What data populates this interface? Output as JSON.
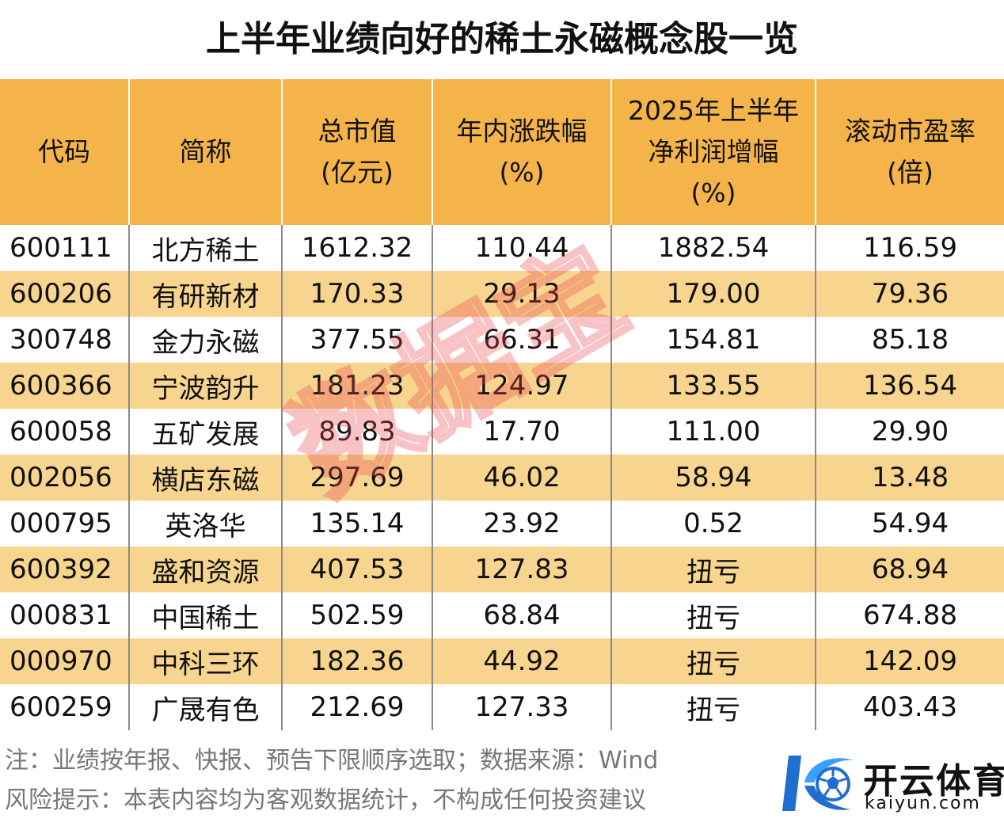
{
  "title": "上半年业绩向好的稀土永磁概念股一览",
  "table": {
    "headers": [
      [
        "代码"
      ],
      [
        "简称"
      ],
      [
        "总市值",
        "(亿元)"
      ],
      [
        "年内涨跌幅",
        "(%)"
      ],
      [
        "2025年上半年",
        "净利润增幅",
        "(%)"
      ],
      [
        "滚动市盈率",
        "(倍)"
      ]
    ],
    "rows": [
      [
        "600111",
        "北方稀土",
        "1612.32",
        "110.44",
        "1882.54",
        "116.59"
      ],
      [
        "600206",
        "有研新材",
        "170.33",
        "29.13",
        "179.00",
        "79.36"
      ],
      [
        "300748",
        "金力永磁",
        "377.55",
        "66.31",
        "154.81",
        "85.18"
      ],
      [
        "600366",
        "宁波韵升",
        "181.23",
        "124.97",
        "133.55",
        "136.54"
      ],
      [
        "600058",
        "五矿发展",
        "89.83",
        "17.70",
        "111.00",
        "29.90"
      ],
      [
        "002056",
        "横店东磁",
        "297.69",
        "46.02",
        "58.94",
        "13.48"
      ],
      [
        "000795",
        "英洛华",
        "135.14",
        "23.92",
        "0.52",
        "54.94"
      ],
      [
        "600392",
        "盛和资源",
        "407.53",
        "127.83",
        "扭亏",
        "68.94"
      ],
      [
        "000831",
        "中国稀土",
        "502.59",
        "68.84",
        "扭亏",
        "674.88"
      ],
      [
        "000970",
        "中科三环",
        "182.36",
        "44.92",
        "扭亏",
        "142.09"
      ],
      [
        "600259",
        "广晟有色",
        "212.69",
        "127.33",
        "扭亏",
        "403.43"
      ]
    ]
  },
  "watermark": "数据宝",
  "notes": {
    "line1": "注：业绩按年报、快报、预告下限顺序选取；数据来源：Wind",
    "line2": "风险提示：本表内容均为客观数据统计，不构成任何投资建议"
  },
  "logo": {
    "name": "开云体育",
    "domain": "kaiyun.com",
    "icon": "k-soccer-ball-icon"
  },
  "colors": {
    "header_bg": "#f5b44a",
    "alt_row_bg": "#f7d58f",
    "watermark": "#e8474c",
    "logo_blue": "#1f6fd1"
  }
}
